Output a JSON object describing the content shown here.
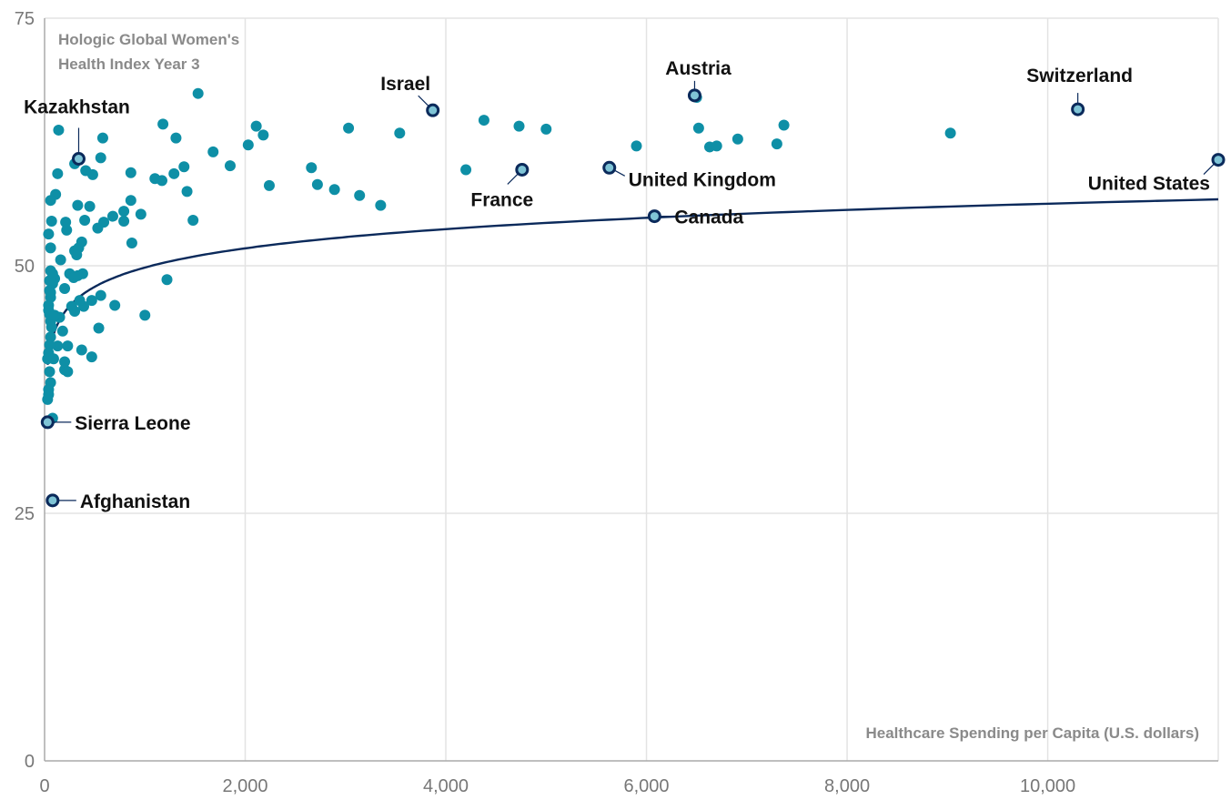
{
  "chart_data": {
    "type": "scatter",
    "title": [
      "Hologic Global Women's",
      "Health Index Year 3"
    ],
    "xlabel": "Healthcare Spending per Capita (U.S. dollars)",
    "ylabel": "",
    "xlim": [
      0,
      11700
    ],
    "ylim": [
      0,
      75
    ],
    "x_ticks": [
      0,
      2000,
      4000,
      6000,
      8000,
      10000
    ],
    "x_tick_labels": [
      "0",
      "2,000",
      "4,000",
      "6,000",
      "8,000",
      "10,000"
    ],
    "y_ticks": [
      0,
      25,
      50,
      75
    ],
    "y_tick_labels": [
      "0",
      "25",
      "50",
      "75"
    ],
    "grid": true,
    "trendline": {
      "type": "logarithmic",
      "a": 40,
      "b": 2.8,
      "x_range": [
        30,
        11700
      ]
    },
    "highlighted": [
      {
        "name": "Kazakhstan",
        "x": 340,
        "y": 60.8
      },
      {
        "name": "Israel",
        "x": 3870,
        "y": 65.7
      },
      {
        "name": "Austria",
        "x": 6480,
        "y": 67.2
      },
      {
        "name": "Switzerland",
        "x": 10300,
        "y": 65.8
      },
      {
        "name": "France",
        "x": 4760,
        "y": 59.7
      },
      {
        "name": "United Kingdom",
        "x": 5630,
        "y": 59.9
      },
      {
        "name": "United States",
        "x": 11700,
        "y": 60.7
      },
      {
        "name": "Canada",
        "x": 6080,
        "y": 55.0
      },
      {
        "name": "Sierra Leone",
        "x": 30,
        "y": 34.2
      },
      {
        "name": "Afghanistan",
        "x": 80,
        "y": 26.3
      }
    ],
    "points": [
      [
        1530,
        67.4
      ],
      [
        1180,
        64.3
      ],
      [
        2110,
        64.1
      ],
      [
        1310,
        62.9
      ],
      [
        2180,
        63.2
      ],
      [
        3030,
        63.9
      ],
      [
        3540,
        63.4
      ],
      [
        4380,
        64.7
      ],
      [
        4730,
        64.1
      ],
      [
        5000,
        63.8
      ],
      [
        6500,
        67.0
      ],
      [
        6520,
        63.9
      ],
      [
        6630,
        62.0
      ],
      [
        6700,
        62.1
      ],
      [
        6910,
        62.8
      ],
      [
        7300,
        62.3
      ],
      [
        7370,
        64.2
      ],
      [
        9030,
        63.4
      ],
      [
        5900,
        62.1
      ],
      [
        1680,
        61.5
      ],
      [
        2030,
        62.2
      ],
      [
        1850,
        60.1
      ],
      [
        1390,
        60.0
      ],
      [
        1100,
        58.8
      ],
      [
        1170,
        58.6
      ],
      [
        1290,
        59.3
      ],
      [
        1420,
        57.5
      ],
      [
        1480,
        54.6
      ],
      [
        2240,
        58.1
      ],
      [
        2660,
        59.9
      ],
      [
        2720,
        58.2
      ],
      [
        2890,
        57.7
      ],
      [
        3140,
        57.1
      ],
      [
        3350,
        56.1
      ],
      [
        4200,
        59.7
      ],
      [
        860,
        59.4
      ],
      [
        860,
        56.6
      ],
      [
        870,
        52.3
      ],
      [
        960,
        55.2
      ],
      [
        790,
        55.5
      ],
      [
        680,
        55.0
      ],
      [
        590,
        54.4
      ],
      [
        530,
        53.8
      ],
      [
        580,
        62.9
      ],
      [
        560,
        60.9
      ],
      [
        480,
        59.2
      ],
      [
        410,
        59.6
      ],
      [
        300,
        60.3
      ],
      [
        140,
        63.7
      ],
      [
        130,
        59.3
      ],
      [
        110,
        57.2
      ],
      [
        330,
        56.1
      ],
      [
        450,
        56.0
      ],
      [
        60,
        56.6
      ],
      [
        70,
        54.5
      ],
      [
        210,
        54.4
      ],
      [
        220,
        53.6
      ],
      [
        400,
        54.6
      ],
      [
        370,
        52.4
      ],
      [
        40,
        53.2
      ],
      [
        60,
        51.8
      ],
      [
        300,
        51.5
      ],
      [
        340,
        51.8
      ],
      [
        320,
        51.1
      ],
      [
        160,
        50.6
      ],
      [
        790,
        54.5
      ],
      [
        1220,
        48.6
      ],
      [
        1000,
        45.0
      ],
      [
        700,
        46.0
      ],
      [
        560,
        47.0
      ],
      [
        470,
        46.5
      ],
      [
        390,
        45.9
      ],
      [
        350,
        46.5
      ],
      [
        300,
        45.4
      ],
      [
        270,
        45.9
      ],
      [
        540,
        43.7
      ],
      [
        370,
        41.5
      ],
      [
        470,
        40.8
      ],
      [
        130,
        41.9
      ],
      [
        200,
        40.3
      ],
      [
        230,
        41.9
      ],
      [
        200,
        39.5
      ],
      [
        230,
        39.3
      ],
      [
        180,
        43.4
      ],
      [
        150,
        44.8
      ],
      [
        200,
        47.7
      ],
      [
        100,
        48.7
      ],
      [
        80,
        48.2
      ],
      [
        250,
        49.2
      ],
      [
        290,
        48.8
      ],
      [
        380,
        49.2
      ],
      [
        330,
        49.0
      ],
      [
        60,
        49.5
      ],
      [
        50,
        48.5
      ],
      [
        50,
        47.5
      ],
      [
        60,
        46.8
      ],
      [
        40,
        46.0
      ],
      [
        40,
        45.5
      ],
      [
        50,
        45.1
      ],
      [
        60,
        44.4
      ],
      [
        70,
        43.8
      ],
      [
        60,
        42.8
      ],
      [
        50,
        42.0
      ],
      [
        40,
        41.2
      ],
      [
        30,
        40.6
      ],
      [
        50,
        39.3
      ],
      [
        60,
        38.2
      ],
      [
        40,
        37.5
      ],
      [
        40,
        37.0
      ],
      [
        30,
        36.5
      ],
      [
        80,
        34.6
      ],
      [
        90,
        40.6
      ],
      [
        100,
        45.0
      ],
      [
        80,
        49.2
      ],
      [
        60,
        47.3
      ]
    ]
  }
}
